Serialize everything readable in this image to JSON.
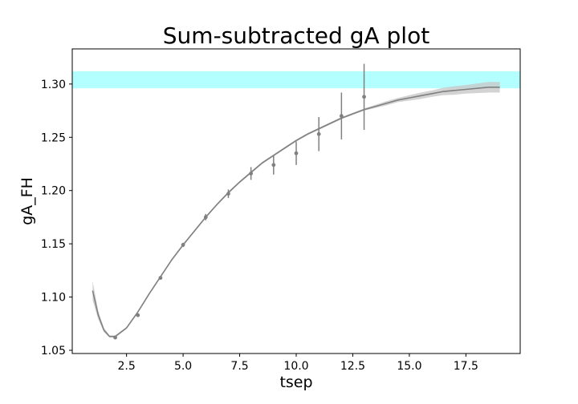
{
  "chart_data": {
    "type": "line",
    "title": "Sum-subtracted gA plot",
    "xlabel": "tsep",
    "ylabel": "gA_FH",
    "xlim": [
      0.1,
      19.9
    ],
    "ylim": [
      1.047,
      1.333
    ],
    "xticks": [
      2.5,
      5.0,
      7.5,
      10.0,
      12.5,
      15.0,
      17.5
    ],
    "xtick_labels": [
      "2.5",
      "5.0",
      "7.5",
      "10.0",
      "12.5",
      "15.0",
      "17.5"
    ],
    "yticks": [
      1.05,
      1.1,
      1.15,
      1.2,
      1.25,
      1.3
    ],
    "ytick_labels": [
      "1.05",
      "1.10",
      "1.15",
      "1.20",
      "1.25",
      "1.30"
    ],
    "grid": false,
    "horizontal_band": {
      "y_low": 1.296,
      "y_high": 1.312,
      "color": "#b3ffff"
    },
    "fit": {
      "color": "#808080",
      "band_color": "#c8c8c8",
      "x": [
        1.0,
        1.25,
        1.5,
        1.75,
        2.0,
        2.5,
        3.0,
        3.5,
        4.0,
        4.5,
        5.0,
        5.5,
        6.0,
        6.5,
        7.0,
        7.5,
        8.0,
        8.5,
        9.0,
        9.5,
        10.0,
        10.5,
        11.0,
        11.5,
        12.0,
        12.5,
        13.0,
        13.5,
        14.0,
        14.5,
        15.0,
        15.5,
        16.0,
        16.5,
        17.0,
        17.5,
        18.0,
        18.5,
        19.0
      ],
      "y": [
        1.106,
        1.083,
        1.069,
        1.063,
        1.063,
        1.071,
        1.086,
        1.103,
        1.119,
        1.135,
        1.149,
        1.162,
        1.175,
        1.187,
        1.198,
        1.208,
        1.217,
        1.226,
        1.233,
        1.24,
        1.247,
        1.253,
        1.258,
        1.263,
        1.268,
        1.272,
        1.276,
        1.279,
        1.282,
        1.285,
        1.287,
        1.289,
        1.291,
        1.293,
        1.294,
        1.295,
        1.296,
        1.297,
        1.297
      ],
      "y_err": [
        0.009,
        0.004,
        0.002,
        0.001,
        0.001,
        0.001,
        0.001,
        0.001,
        0.001,
        0.001,
        0.001,
        0.001,
        0.001,
        0.001,
        0.001,
        0.001,
        0.001,
        0.001,
        0.001,
        0.001,
        0.001,
        0.001,
        0.001,
        0.001,
        0.001,
        0.001,
        0.001,
        0.0015,
        0.002,
        0.002,
        0.0025,
        0.003,
        0.003,
        0.0035,
        0.004,
        0.004,
        0.0045,
        0.005,
        0.005
      ]
    },
    "series": [
      {
        "color": "#808080",
        "x": [
          2,
          3,
          4,
          5,
          6,
          7,
          8,
          9,
          10,
          11,
          12,
          13
        ],
        "y": [
          1.062,
          1.083,
          1.118,
          1.149,
          1.175,
          1.197,
          1.216,
          1.224,
          1.235,
          1.253,
          1.27,
          1.288
        ],
        "y_err": [
          0.001,
          0.001,
          0.001,
          0.002,
          0.003,
          0.004,
          0.006,
          0.009,
          0.011,
          0.016,
          0.022,
          0.031
        ]
      }
    ]
  }
}
